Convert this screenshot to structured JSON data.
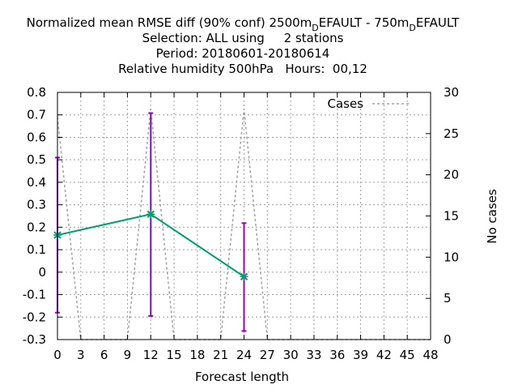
{
  "chart_data": {
    "type": "line",
    "title_lines": [
      "Normalized mean RMSE diff (90% conf) 2500m_DEFAULT - 750m_DEFAULT",
      "Selection: ALL using     2 stations",
      "Period: 20180601-20180614",
      "Relative humidity 500hPa   Hours:  00,12"
    ],
    "title_parts": {
      "prefix": "Normalized mean RMSE diff (90% conf) 2500m",
      "sub1": "D",
      "mid": "EFAULT - 750m",
      "sub2": "D",
      "suffix": "EFAULT"
    },
    "xlabel": "Forecast length",
    "ylabel_right": "No cases",
    "xlim": [
      0,
      48
    ],
    "ylim": [
      -0.3,
      0.8
    ],
    "y2lim": [
      0,
      30
    ],
    "x_ticks": [
      "0",
      "3",
      "6",
      "9",
      "12",
      "15",
      "18",
      "21",
      "24",
      "27",
      "30",
      "33",
      "36",
      "39",
      "42",
      "45",
      "48"
    ],
    "y_ticks": [
      "-0.3",
      "-0.2",
      "-0.1",
      "0",
      "0.1",
      "0.2",
      "0.3",
      "0.4",
      "0.5",
      "0.6",
      "0.7",
      "0.8"
    ],
    "y2_ticks": [
      "0",
      "5",
      "10",
      "15",
      "20",
      "25",
      "30"
    ],
    "grid": true,
    "legend": {
      "position": "top-right",
      "entries": [
        "Cases"
      ]
    },
    "series": [
      {
        "x": [
          0,
          12,
          24
        ],
        "values": [
          0.165,
          0.258,
          -0.02
        ],
        "error_low": [
          -0.18,
          -0.195,
          -0.262
        ],
        "error_high": [
          0.51,
          0.708,
          0.218
        ],
        "color": "#009e73",
        "error_color": "#9400d3"
      },
      {
        "name": "Cases",
        "axis": "right",
        "x": [
          0,
          3,
          6,
          9,
          12,
          15,
          18,
          21,
          24,
          27,
          30,
          33,
          36,
          39,
          42,
          45,
          48
        ],
        "values": [
          27,
          0,
          0,
          0,
          28,
          0,
          0,
          0,
          28,
          0,
          0,
          0,
          0,
          0,
          0,
          0,
          0
        ],
        "color": "#a0a0a0",
        "dashed": true
      }
    ]
  }
}
